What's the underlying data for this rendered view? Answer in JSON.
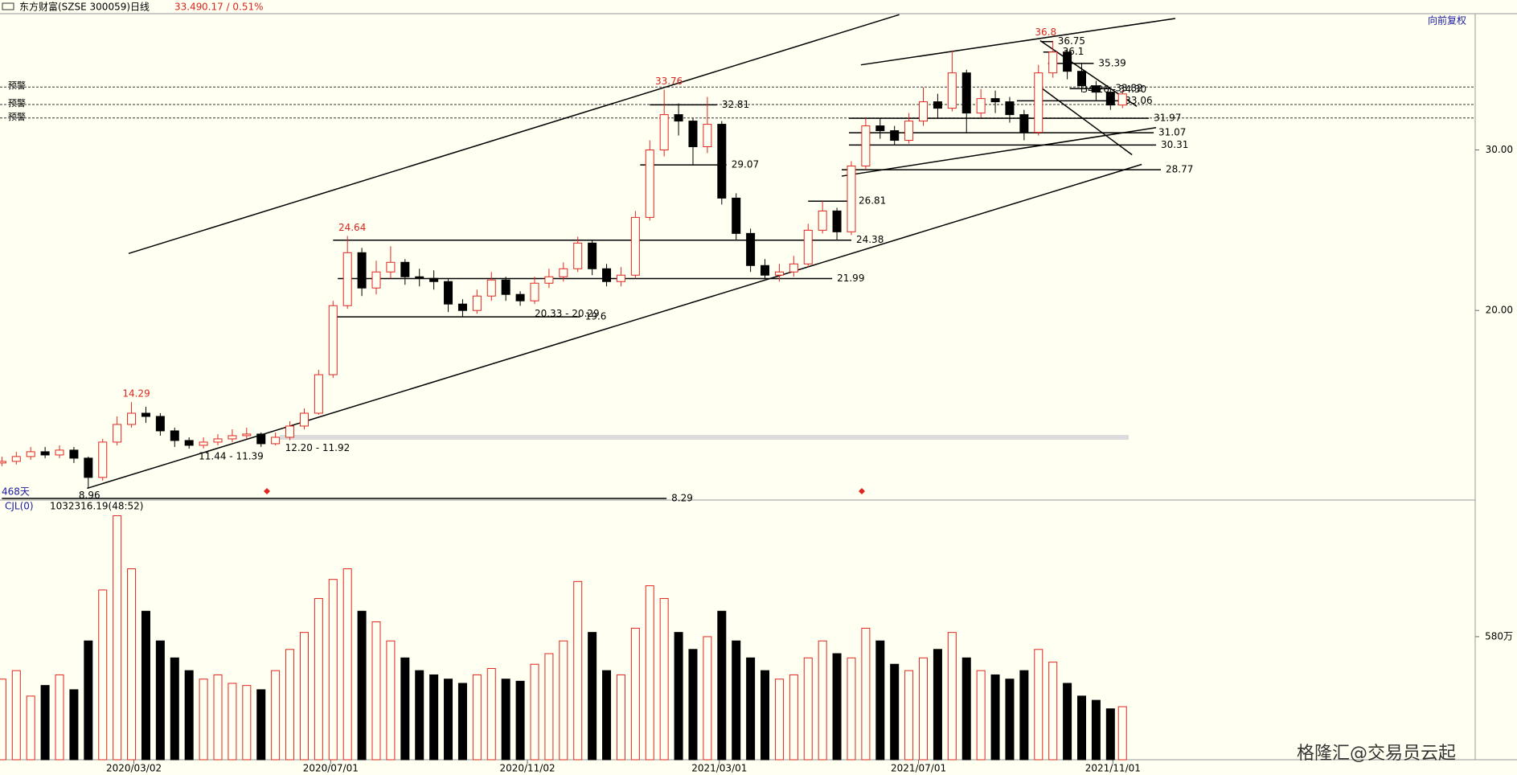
{
  "header": {
    "name": "东方财富(SZSE 300059)",
    "period": "日线",
    "price": "33.49",
    "change": "0.17 / 0.51%",
    "adjust": "向前复权",
    "days": "468天"
  },
  "volume_header": {
    "indicator": "CJL(0)",
    "reading": "1032316.19(48:52)"
  },
  "watermark": "格隆汇@交易员云起",
  "chart_data": {
    "type": "candlestick",
    "up_color": "#e0271f",
    "down_color": "#000000",
    "xlim": [
      -0.8,
      614
    ],
    "ylim": [
      8.19,
      38.49
    ],
    "yticks": [
      {
        "value": 30,
        "label": "30.00"
      },
      {
        "value": 20,
        "label": "20.00"
      }
    ],
    "xticks": [
      {
        "value": 55,
        "label": "2020/03/02"
      },
      {
        "value": 137,
        "label": "2020/07/01"
      },
      {
        "value": 219,
        "label": "2020/11/02"
      },
      {
        "value": 299,
        "label": "2021/03/01"
      },
      {
        "value": 382,
        "label": "2021/07/01"
      },
      {
        "value": 463,
        "label": "2021/11/01"
      }
    ],
    "x": [
      0,
      6,
      12,
      18,
      24,
      30,
      36,
      42,
      48,
      54,
      60,
      66,
      72,
      78,
      84,
      90,
      96,
      102,
      108,
      114,
      120,
      126,
      132,
      138,
      144,
      150,
      156,
      162,
      168,
      174,
      180,
      186,
      192,
      198,
      204,
      210,
      216,
      222,
      228,
      234,
      240,
      246,
      252,
      258,
      264,
      270,
      276,
      282,
      288,
      294,
      300,
      306,
      312,
      318,
      324,
      330,
      336,
      342,
      348,
      354,
      360,
      366,
      372,
      378,
      384,
      390,
      396,
      402,
      408,
      414,
      420,
      426,
      432,
      438,
      444,
      450,
      456,
      462,
      467
    ],
    "open": [
      10.5,
      10.6,
      10.9,
      11.2,
      11.0,
      11.3,
      10.8,
      9.6,
      11.8,
      12.9,
      13.6,
      13.4,
      12.5,
      11.9,
      11.6,
      11.8,
      12.0,
      12.2,
      12.3,
      11.7,
      12.1,
      12.8,
      13.6,
      16.0,
      20.3,
      23.6,
      21.4,
      22.4,
      23.0,
      22.1,
      22.0,
      21.8,
      20.4,
      20.0,
      20.9,
      21.9,
      21.0,
      20.6,
      21.7,
      22.1,
      22.6,
      24.2,
      22.6,
      21.8,
      22.2,
      25.8,
      30.0,
      32.2,
      31.8,
      30.2,
      31.6,
      27.0,
      24.8,
      22.8,
      22.2,
      22.4,
      22.9,
      25.0,
      26.2,
      24.9,
      29.0,
      31.5,
      31.2,
      30.6,
      31.8,
      33.0,
      32.6,
      34.8,
      32.3,
      33.2,
      33.0,
      32.2,
      31.1,
      34.8,
      36.1,
      34.9,
      34.0,
      33.6,
      32.8
    ],
    "high": [
      10.9,
      11.2,
      11.5,
      11.5,
      11.6,
      11.5,
      10.9,
      12.0,
      13.4,
      14.29,
      14.0,
      13.6,
      12.7,
      12.1,
      12.1,
      12.3,
      12.6,
      12.7,
      12.4,
      12.4,
      13.1,
      13.9,
      16.3,
      20.6,
      24.64,
      23.9,
      23.1,
      24.0,
      23.2,
      22.6,
      22.5,
      22.0,
      20.7,
      21.3,
      22.4,
      22.1,
      21.2,
      22.1,
      22.6,
      23.0,
      24.6,
      24.4,
      22.9,
      22.7,
      26.2,
      30.6,
      33.76,
      32.9,
      32.0,
      33.3,
      31.8,
      27.3,
      25.1,
      23.2,
      22.9,
      23.4,
      25.4,
      26.81,
      26.4,
      29.3,
      31.97,
      32.0,
      31.5,
      32.3,
      33.9,
      33.5,
      36.2,
      35.0,
      33.8,
      33.7,
      33.3,
      32.5,
      35.3,
      36.8,
      36.3,
      35.39,
      34.3,
      33.82,
      33.7
    ],
    "low": [
      10.3,
      10.4,
      10.7,
      10.8,
      10.8,
      10.5,
      8.96,
      9.4,
      11.6,
      12.7,
      13.0,
      12.2,
      11.5,
      11.39,
      11.4,
      11.6,
      11.8,
      12.0,
      11.5,
      11.6,
      11.92,
      12.6,
      13.5,
      15.8,
      20.1,
      20.9,
      21.0,
      22.0,
      21.6,
      21.5,
      21.3,
      19.9,
      19.6,
      19.8,
      20.6,
      20.6,
      20.29,
      20.4,
      21.4,
      21.8,
      22.4,
      22.2,
      21.5,
      21.5,
      22.0,
      25.6,
      29.6,
      30.9,
      29.07,
      29.8,
      26.6,
      24.4,
      22.4,
      21.99,
      21.8,
      22.1,
      22.7,
      24.8,
      24.38,
      24.7,
      28.77,
      30.7,
      30.31,
      30.4,
      31.5,
      32.0,
      32.4,
      31.07,
      32.0,
      32.3,
      31.7,
      30.6,
      30.9,
      34.5,
      34.4,
      33.6,
      33.1,
      32.5,
      32.6
    ],
    "close": [
      10.6,
      10.9,
      11.2,
      11.0,
      11.3,
      10.8,
      9.6,
      11.8,
      12.9,
      13.6,
      13.4,
      12.5,
      11.9,
      11.6,
      11.8,
      12.0,
      12.2,
      12.3,
      11.7,
      12.1,
      12.8,
      13.6,
      16.0,
      20.3,
      23.6,
      21.4,
      22.4,
      23.0,
      22.1,
      22.0,
      21.8,
      20.4,
      20.0,
      20.9,
      21.9,
      21.0,
      20.6,
      21.7,
      22.1,
      22.6,
      24.2,
      22.6,
      21.8,
      22.2,
      25.8,
      30.0,
      32.2,
      31.8,
      30.2,
      31.6,
      27.0,
      24.8,
      22.8,
      22.2,
      22.4,
      22.9,
      25.0,
      26.2,
      24.9,
      29.0,
      31.5,
      31.2,
      30.6,
      31.8,
      33.0,
      32.6,
      34.8,
      32.3,
      33.2,
      33.0,
      32.2,
      31.1,
      34.8,
      36.1,
      34.9,
      34.0,
      33.6,
      32.8,
      33.49
    ],
    "volume": {
      "ylim": [
        0,
        1224
      ],
      "yticks": [
        {
          "value": 580,
          "label": "580万"
        }
      ],
      "values": [
        380,
        420,
        300,
        350,
        400,
        330,
        560,
        800,
        1150,
        900,
        700,
        560,
        480,
        420,
        380,
        400,
        360,
        350,
        330,
        420,
        520,
        600,
        760,
        850,
        900,
        700,
        650,
        560,
        480,
        420,
        400,
        380,
        360,
        400,
        430,
        380,
        370,
        450,
        500,
        560,
        840,
        600,
        420,
        400,
        620,
        820,
        760,
        600,
        520,
        580,
        700,
        560,
        480,
        420,
        380,
        400,
        480,
        560,
        500,
        480,
        620,
        560,
        450,
        420,
        480,
        520,
        600,
        480,
        420,
        400,
        380,
        420,
        520,
        460,
        360,
        300,
        280,
        240,
        250
      ]
    },
    "levels": [
      {
        "value": 32.81,
        "from": 270,
        "to": 298
      },
      {
        "value": 29.07,
        "from": 266,
        "to": 302
      },
      {
        "value": 26.81,
        "from": 336,
        "to": 355
      },
      {
        "value": 24.38,
        "from": 138,
        "to": 354
      },
      {
        "value": 21.99,
        "from": 140,
        "to": 346
      },
      {
        "value": 19.6,
        "from": 138,
        "to": 241
      },
      {
        "value": 31.97,
        "from": 353,
        "to": 478
      },
      {
        "value": 31.07,
        "from": 353,
        "to": 480
      },
      {
        "value": 30.31,
        "from": 353,
        "to": 481
      },
      {
        "value": 28.77,
        "from": 350,
        "to": 483
      },
      {
        "value": 33.06,
        "from": 423,
        "to": 466
      },
      {
        "value": 35.39,
        "from": 436,
        "to": 455
      },
      {
        "value": 36.1,
        "from": 434,
        "to": 440
      },
      {
        "value": 36.75,
        "from": 433,
        "to": 438
      },
      {
        "value": 33.82,
        "from": 445,
        "to": 462
      },
      {
        "value": 8.29,
        "from": 0,
        "to": 277
      }
    ],
    "peaks": [
      {
        "value": 36.8,
        "x": 435
      },
      {
        "value": 33.76,
        "x": 278
      },
      {
        "value": 24.64,
        "x": 146
      },
      {
        "value": 14.29,
        "x": 56
      }
    ],
    "annotations": [
      {
        "text": "11.44 - 11.39",
        "x": 82,
        "y": 11.39
      },
      {
        "text": "12.20 - 11.92",
        "x": 118,
        "y": 11.92
      },
      {
        "text": "20.33 - 20.29",
        "x": 222,
        "y": 20.29
      },
      {
        "text": "8.96",
        "x": 32,
        "y": 8.96
      },
      {
        "text": "34.26 - 34.30",
        "x": 450,
        "y": 34.26
      }
    ],
    "alerts": [
      {
        "label": "预警",
        "value": 33.92
      },
      {
        "label": "预警",
        "value": 32.83
      },
      {
        "label": "预警",
        "value": 31.99
      }
    ],
    "trendlines": [
      {
        "x": [
          52.8,
          374
        ],
        "y": [
          23.55,
          38.43
        ]
      },
      {
        "x": [
          35.5,
          475
        ],
        "y": [
          8.92,
          29.1
        ]
      },
      {
        "x": [
          358,
          489
        ],
        "y": [
          35.3,
          38.19
        ]
      },
      {
        "x": [
          350,
          481
        ],
        "y": [
          28.37,
          31.39
        ]
      },
      {
        "x": [
          432.7,
          473
        ],
        "y": [
          36.81,
          32.71
        ]
      },
      {
        "x": [
          432.7,
          471
        ],
        "y": [
          33.92,
          29.7
        ]
      }
    ]
  }
}
